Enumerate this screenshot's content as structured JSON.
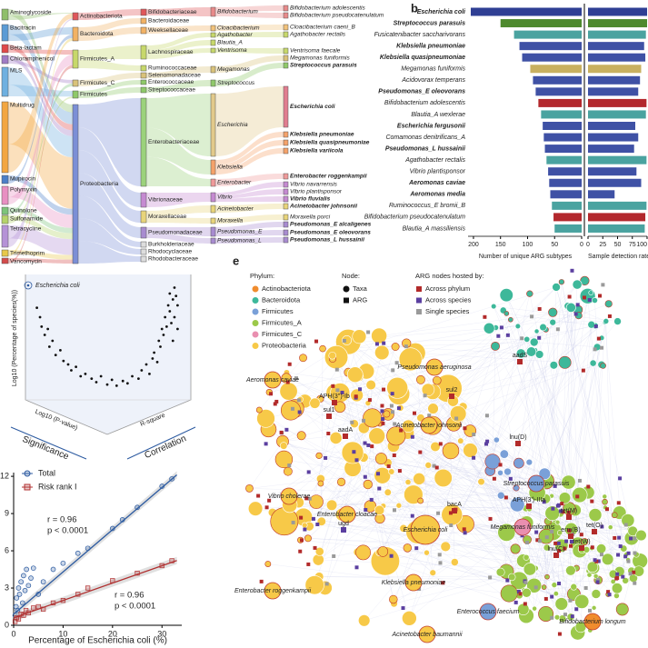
{
  "chart_data": [
    {
      "type": "sankey",
      "columns": [
        {
          "nodes": [
            "Aminoglycoside",
            "Bacitracin",
            "Beta-lactam",
            "Chloramphenicol",
            "MLS",
            "Multidrug",
            "Mupirocin",
            "Polymyxin",
            "Quinolone",
            "Sulfonamide",
            "Tetracycline",
            "Trimethoprim",
            "Vancomycin"
          ],
          "colors": [
            "#8fbf6a",
            "#5b9bd5",
            "#e04848",
            "#a07cc5",
            "#6fb0e0",
            "#f3a640",
            "#4b7fc8",
            "#e88fc2",
            "#7cc47a",
            "#b5d36a",
            "#b592d6",
            "#e7c84a",
            "#d44b4b"
          ]
        },
        {
          "nodes": [
            "Actinobacteriota",
            "Bacteroidota",
            "Firmicutes_A",
            "Firmicutes_C",
            "Firmicutes",
            "Proteobacteria"
          ],
          "colors": [
            "#e0575a",
            "#f2b264",
            "#c7d86b",
            "#d9c27a",
            "#8fc96a",
            "#7b8fd6"
          ]
        },
        {
          "nodes": [
            "Bifidobacteriaceae",
            "Bacteroidaceae",
            "Weeksellaceae",
            "Lachnospiraceae",
            "Ruminococcaceae",
            "Selenomonadaceae",
            "Enterococcaceae",
            "Streptococcaceae",
            "Enterobacteriaceae",
            "Vibrionaceae",
            "Moraxellaceae",
            "Pseudomonadaceae",
            "Burkholderiaceae",
            "Rhodocyclaceae",
            "Rhodobacteraceae"
          ],
          "colors": [
            "#e0575a",
            "#f2b264",
            "#f2b264",
            "#c7d86b",
            "#c7d86b",
            "#d9c27a",
            "#8fc96a",
            "#8fc96a",
            "#9bd27b",
            "#c58ad1",
            "#e8d47a",
            "#a88bd0",
            "#dddddd",
            "#dddddd",
            "#dddddd"
          ]
        },
        {
          "nodes": [
            "Bifidobacterium",
            "Cloacibacterium",
            "Agathobacter",
            "Blautia_A",
            "Ventrisoma",
            "Megamonas",
            "Streptococcus",
            "Escherichia",
            "Klebsiella",
            "Enterobacter",
            "Vibrio",
            "Acinetobacter",
            "Moraxella",
            "Pseudomonas_E",
            "Pseudomonas_L"
          ],
          "colors": [
            "#e88a8a",
            "#f2c27a",
            "#c7d86b",
            "#c7d86b",
            "#c7d86b",
            "#d9c27a",
            "#8fc96a",
            "#e2c98a",
            "#f5a26a",
            "#f09a9a",
            "#c58ad1",
            "#e8d47a",
            "#e8d47a",
            "#a88bd0",
            "#a88bd0"
          ]
        },
        {
          "nodes": [
            "Bifidobacterium adolescentis",
            "Bifidobacterium pseudocatenulatum",
            "Cloacibacterium caeni_B",
            "Agathobacter rectalis",
            "Ventrisoma faecale",
            "Megamonas funiformis",
            "Streptococcus parasuis",
            "Escherichia coli",
            "Klebsiella pneumoniae",
            "Klebsiella quasipneumoniae",
            "Klebsiella variicola",
            "Enterobacter roggenkampii",
            "Vibrio navarrensis",
            "Vibrio plantisponsor",
            "Vibrio fluvialis",
            "Acinetobacter johnsonii",
            "Moraxella porci",
            "Pseudomonas_E alcaligenes",
            "Pseudomonas_E oleovorans",
            "Pseudomonas_L hussainii"
          ],
          "colors": [
            "#e88a8a",
            "#e88a8a",
            "#f2c27a",
            "#c7d86b",
            "#c7d86b",
            "#d9c27a",
            "#8fc96a",
            "#e07d8f",
            "#f5a26a",
            "#f5a26a",
            "#f5a26a",
            "#f09a9a",
            "#c58ad1",
            "#c58ad1",
            "#c58ad1",
            "#e8d47a",
            "#e8d47a",
            "#a88bd0",
            "#a88bd0",
            "#a88bd0"
          ],
          "bold": [
            false,
            false,
            false,
            false,
            false,
            false,
            true,
            true,
            true,
            true,
            true,
            true,
            false,
            false,
            true,
            true,
            false,
            true,
            true,
            true
          ]
        }
      ]
    },
    {
      "type": "bar",
      "panel": "b",
      "categories": [
        "Escherichia coli",
        "Streptococcus parasuis",
        "Fusicatenibacter saccharivorans",
        "Klebsiella pneumoniae",
        "Klebsiella quasipneumoniae",
        "Megamonas funiformis",
        "Acidovorax temperans",
        "Pseudomonas_E oleovorans",
        "Bifidobacterium adolescentis",
        "Blautia_A wexlerae",
        "Escherichia fergusonii",
        "Comamonas denitrificans_A",
        "Pseudomonas_L hussainii",
        "Agathobacter rectalis",
        "Vibrio plantisponsor",
        "Aeromonas caviae",
        "Aeromonas media",
        "Ruminococcus_E bromii_B",
        "Bifidobacterium pseudocatenulatum",
        "Blautia_A massiliensis"
      ],
      "bold": [
        true,
        true,
        false,
        true,
        true,
        false,
        false,
        true,
        false,
        false,
        true,
        false,
        true,
        false,
        false,
        true,
        true,
        false,
        false,
        false
      ],
      "colors": [
        "#2f3f94",
        "#4e8a2e",
        "#4aa3a0",
        "#3f51a5",
        "#3f51a5",
        "#c8b060",
        "#3f51a5",
        "#3f51a5",
        "#b3282d",
        "#4aa3a0",
        "#3f51a5",
        "#3f51a5",
        "#3f51a5",
        "#4aa3a0",
        "#3f51a5",
        "#3f51a5",
        "#3f51a5",
        "#4aa3a0",
        "#b3282d",
        "#4aa3a0"
      ],
      "left": {
        "xlabel": "Number of unique ARG subtypes",
        "xlim": [
          210,
          0
        ],
        "xticks": [
          200,
          150,
          100,
          50,
          0
        ],
        "values": [
          205,
          150,
          125,
          115,
          110,
          95,
          90,
          85,
          80,
          75,
          72,
          70,
          68,
          65,
          62,
          60,
          58,
          55,
          52,
          50
        ]
      },
      "right": {
        "xlabel": "Sample detection rate",
        "xlim": [
          0,
          100
        ],
        "xticks": [
          0,
          25,
          50,
          75,
          100
        ],
        "values": [
          100,
          100,
          98,
          95,
          97,
          90,
          88,
          85,
          99,
          98,
          80,
          85,
          78,
          99,
          82,
          90,
          45,
          99,
          97,
          96
        ]
      }
    },
    {
      "type": "scatter3d",
      "ylabel": "Log10 (Percentage of species(%))",
      "xlabel": "Log10 (P-value)",
      "zlabel": "R-square",
      "annotations": [
        "Significance",
        "Correlation"
      ],
      "legend": "Escherichia coli",
      "color": "#111111",
      "xlim": [
        0,
        1
      ],
      "ylim": [
        0,
        1
      ],
      "x": [
        0.05,
        0.07,
        0.08,
        0.1,
        0.12,
        0.13,
        0.15,
        0.17,
        0.2,
        0.22,
        0.25,
        0.27,
        0.3,
        0.33,
        0.36,
        0.4,
        0.43,
        0.46,
        0.5,
        0.53,
        0.56,
        0.6,
        0.63,
        0.66,
        0.7,
        0.72,
        0.75,
        0.77,
        0.79,
        0.8,
        0.82,
        0.83,
        0.84,
        0.85,
        0.86,
        0.87,
        0.88,
        0.89,
        0.9,
        0.9,
        0.91,
        0.92,
        0.92,
        0.93,
        0.93,
        0.94,
        0.95,
        0.95
      ],
      "y": [
        0.78,
        0.7,
        0.62,
        0.55,
        0.6,
        0.45,
        0.5,
        0.38,
        0.42,
        0.33,
        0.3,
        0.25,
        0.28,
        0.2,
        0.22,
        0.18,
        0.15,
        0.2,
        0.13,
        0.17,
        0.12,
        0.16,
        0.14,
        0.2,
        0.18,
        0.25,
        0.3,
        0.22,
        0.35,
        0.4,
        0.32,
        0.5,
        0.45,
        0.6,
        0.55,
        0.7,
        0.62,
        0.8,
        0.75,
        0.9,
        0.65,
        0.85,
        0.5,
        0.95,
        0.7,
        0.88,
        0.6,
        0.8
      ]
    },
    {
      "type": "scatter",
      "xlabel": "Percentage of Escherichia coli (%)",
      "xlim": [
        0,
        34
      ],
      "ylim": [
        0,
        12.3
      ],
      "xticks": [
        0,
        10,
        20,
        30
      ],
      "yticks": [
        0,
        3,
        6,
        9,
        12
      ],
      "series": [
        {
          "name": "Total",
          "color": "#2c5aa0",
          "marker": "circle",
          "fit": {
            "slope": 0.34,
            "intercept": 0.9
          },
          "x": [
            0.3,
            0.5,
            0.6,
            0.8,
            1,
            1.2,
            1.5,
            1.8,
            2,
            2.3,
            2.6,
            3,
            3.5,
            4,
            5,
            6,
            8,
            10,
            13,
            15,
            20,
            22,
            25,
            30,
            32
          ],
          "y": [
            0.8,
            1.5,
            2.2,
            1.2,
            3,
            2.5,
            3.5,
            1.8,
            4,
            2.8,
            4.5,
            3.2,
            3.8,
            4.6,
            2.5,
            3.5,
            4.5,
            5,
            5.8,
            6.2,
            7.8,
            8.5,
            9.5,
            11.2,
            11.8
          ]
        },
        {
          "name": "Risk rank I",
          "color": "#b03030",
          "marker": "square",
          "fit": {
            "slope": 0.14,
            "intercept": 0.6
          },
          "x": [
            0.3,
            0.6,
            1,
            1.5,
            2,
            2.5,
            3,
            4,
            5,
            6,
            8,
            10,
            13,
            15,
            20,
            25,
            30,
            32
          ],
          "y": [
            0.3,
            0.6,
            0.5,
            0.9,
            0.8,
            1.2,
            1,
            1.4,
            1.5,
            1.3,
            1.8,
            2,
            2.5,
            3,
            3.6,
            4.2,
            4.8,
            5.2
          ]
        }
      ],
      "annotations": [
        {
          "lines": [
            "r = 0.96",
            "p < 0.0001"
          ],
          "color": "#2c5aa0"
        },
        {
          "lines": [
            "r = 0.96",
            "p < 0.0001"
          ],
          "color": "#b03030"
        }
      ]
    },
    {
      "type": "network",
      "panel": "e",
      "phylum_title": "Phylum:",
      "phyla": [
        {
          "name": "Actinobacteriota",
          "color": "#f08c2e"
        },
        {
          "name": "Bacteroidota",
          "color": "#3db89a"
        },
        {
          "name": "Firmicutes",
          "color": "#7aa0d8"
        },
        {
          "name": "Firmicutes_A",
          "color": "#9cc94a"
        },
        {
          "name": "Firmicutes_C",
          "color": "#e98fb0"
        },
        {
          "name": "Proteobacteria",
          "color": "#f7c948"
        }
      ],
      "node_title": "Node:",
      "node_types": [
        "Taxa",
        "ARG"
      ],
      "host_title": "ARG nodes hosted by:",
      "hosts": [
        {
          "name": "Across phylum",
          "color": "#b22a2a"
        },
        {
          "name": "Across species",
          "color": "#5b3fa0"
        },
        {
          "name": "Single species",
          "color": "#9a9a9a"
        }
      ],
      "nodes": [
        {
          "label": "Aeromonas caviae",
          "phylum": "Proteobacteria"
        },
        {
          "label": "Pseudomonas aeruginosa",
          "phylum": "Proteobacteria"
        },
        {
          "label": "Acinetobacter johnsonii",
          "phylum": "Proteobacteria"
        },
        {
          "label": "Vibrio cholerae",
          "phylum": "Proteobacteria"
        },
        {
          "label": "Enterobacter cloacae",
          "phylum": "Proteobacteria"
        },
        {
          "label": "Escherichia coli",
          "phylum": "Proteobacteria"
        },
        {
          "label": "Streptococcus parasuis",
          "phylum": "Firmicutes"
        },
        {
          "label": "Megamonas funiformis",
          "phylum": "Firmicutes_C"
        },
        {
          "label": "Enterobacter roggenkampii",
          "phylum": "Proteobacteria"
        },
        {
          "label": "Klebsiella pneumoniae",
          "phylum": "Proteobacteria"
        },
        {
          "label": "Enterococcus faecium",
          "phylum": "Firmicutes"
        },
        {
          "label": "Acinetobacter baumannii",
          "phylum": "Proteobacteria"
        },
        {
          "label": "Bifidobacterium longum",
          "phylum": "Actinobacteriota"
        },
        {
          "label": "aadS",
          "host": "Across phylum"
        },
        {
          "label": "sul2",
          "host": "Across phylum"
        },
        {
          "label": "APH(3'')-Ib",
          "host": "Across phylum"
        },
        {
          "label": "sul1",
          "host": "Across phylum"
        },
        {
          "label": "aadA",
          "host": "Across phylum"
        },
        {
          "label": "ugd",
          "host": "Across species"
        },
        {
          "label": "bacA",
          "host": "Across phylum"
        },
        {
          "label": "lnu(D)",
          "host": "Across phylum"
        },
        {
          "label": "APH(3')-IIIa",
          "host": "Across phylum"
        },
        {
          "label": "tet(M)",
          "host": "Across phylum"
        },
        {
          "label": "erm(B)",
          "host": "Across phylum"
        },
        {
          "label": "tet(O)",
          "host": "Across phylum"
        },
        {
          "label": "tet(W)",
          "host": "Across phylum"
        },
        {
          "label": "lnu(C)",
          "host": "Across phylum"
        }
      ]
    }
  ]
}
